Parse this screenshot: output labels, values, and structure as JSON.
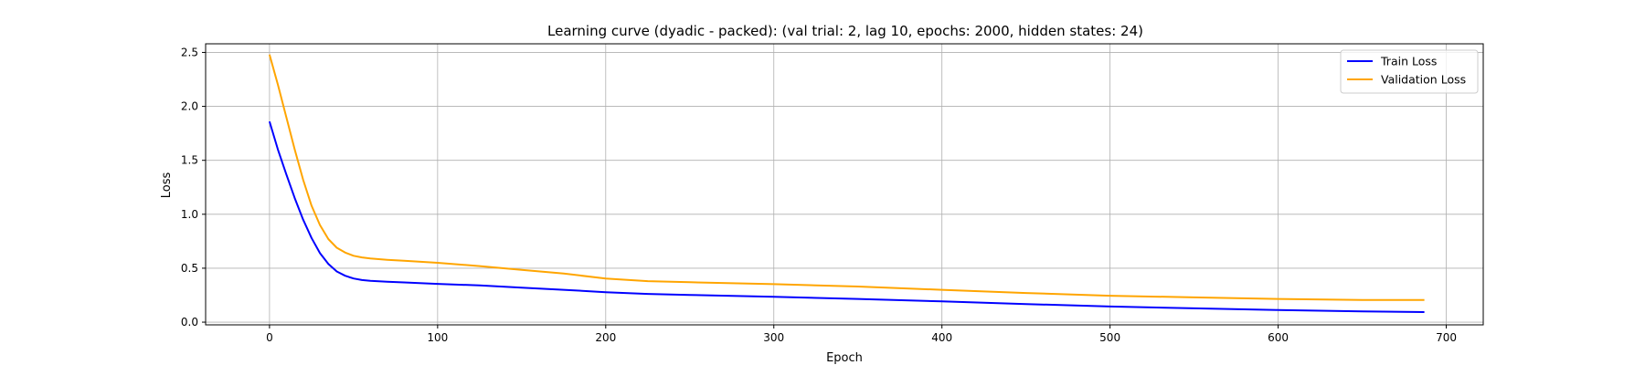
{
  "chart_data": {
    "type": "line",
    "title": "Learning curve (dyadic - packed): (val trial: 2, lag 10, epochs: 2000, hidden states: 24)",
    "xlabel": "Epoch",
    "ylabel": "Loss",
    "xlim": [
      -38,
      722
    ],
    "ylim": [
      -0.025,
      2.58
    ],
    "xticks": [
      0,
      100,
      200,
      300,
      400,
      500,
      600,
      700
    ],
    "yticks": [
      0.0,
      0.5,
      1.0,
      1.5,
      2.0,
      2.5
    ],
    "grid": true,
    "legend_position": "top-right",
    "series": [
      {
        "name": "Train Loss",
        "color": "#0000ff",
        "x": [
          0,
          5,
          10,
          15,
          20,
          25,
          30,
          35,
          40,
          45,
          50,
          55,
          60,
          70,
          80,
          100,
          125,
          150,
          175,
          200,
          225,
          250,
          300,
          350,
          400,
          450,
          500,
          550,
          600,
          650,
          687
        ],
        "y": [
          1.86,
          1.6,
          1.37,
          1.15,
          0.95,
          0.78,
          0.64,
          0.54,
          0.47,
          0.43,
          0.405,
          0.39,
          0.383,
          0.375,
          0.368,
          0.355,
          0.34,
          0.32,
          0.3,
          0.278,
          0.262,
          0.252,
          0.235,
          0.215,
          0.192,
          0.168,
          0.145,
          0.128,
          0.113,
          0.1,
          0.093
        ]
      },
      {
        "name": "Validation Loss",
        "color": "#ffa500",
        "x": [
          0,
          5,
          10,
          15,
          20,
          25,
          30,
          35,
          40,
          45,
          50,
          55,
          60,
          70,
          80,
          100,
          125,
          150,
          175,
          200,
          225,
          250,
          300,
          350,
          400,
          450,
          500,
          550,
          600,
          650,
          687
        ],
        "y": [
          2.48,
          2.2,
          1.9,
          1.6,
          1.32,
          1.08,
          0.9,
          0.77,
          0.69,
          0.645,
          0.615,
          0.6,
          0.59,
          0.578,
          0.57,
          0.55,
          0.52,
          0.485,
          0.45,
          0.405,
          0.38,
          0.37,
          0.352,
          0.33,
          0.3,
          0.27,
          0.245,
          0.23,
          0.215,
          0.205,
          0.205
        ]
      }
    ]
  }
}
